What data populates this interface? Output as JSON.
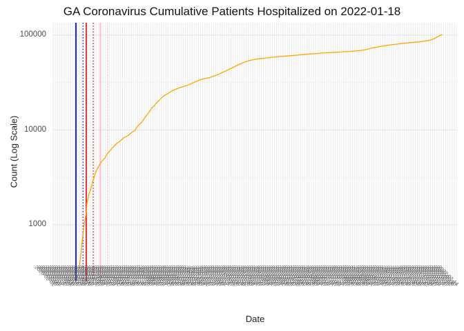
{
  "chart_data": {
    "type": "line",
    "title": "GA Coronavirus Cumulative Patients Hospitalized on 2022-01-18",
    "xlabel": "Date",
    "ylabel": "Count (Log Scale)",
    "y_scale": "log10",
    "ylim": [
      253,
      135000
    ],
    "grid": true,
    "legend": "none",
    "colors": {
      "background": "#FFFFFF",
      "grid_vertical": "#E9E9E9",
      "grid_major_horizontal": "#E3E3E3",
      "grid_minor_horizontal": "#F1F1F1",
      "tick_text": "#4D4D4D",
      "x_tick_text": "#555555"
    },
    "y_ticks": [
      {
        "value": 1000,
        "label": "1000"
      },
      {
        "value": 10000,
        "label": "10000"
      },
      {
        "value": 100000,
        "label": "100000"
      }
    ],
    "y_minor_gridlines": [
      316,
      3162,
      31623
    ],
    "x_axis": {
      "start": "2020-02-01",
      "end": "2022-02-15",
      "tick_step_days": 4,
      "tick_label_format": "YYYY-MM-DD",
      "tick_angle_deg": 45
    },
    "reference_lines": [
      {
        "date": "2020-03-14",
        "color": "#2424D6",
        "style": "solid",
        "width": 2.0
      },
      {
        "date": "2020-03-27",
        "color": "#2424D6",
        "style": "dotted",
        "width": 1.4
      },
      {
        "date": "2020-04-02",
        "color": "#DD2222",
        "style": "solid",
        "width": 1.8
      },
      {
        "date": "2020-04-15",
        "color": "#DD2222",
        "style": "dotted",
        "width": 1.4
      },
      {
        "date": "2020-04-28",
        "color": "#FFB3C1",
        "style": "solid",
        "width": 1.6
      },
      {
        "date": "2020-05-12",
        "color": "#FFCCD5",
        "style": "dotted",
        "width": 1.4
      }
    ],
    "series": [
      {
        "name": "cumulative_patients_hospitalized",
        "color": "#FFA500",
        "points": [
          [
            "2020-03-20",
            350
          ],
          [
            "2020-03-23",
            480
          ],
          [
            "2020-03-25",
            620
          ],
          [
            "2020-03-27",
            790
          ],
          [
            "2020-03-29",
            1000
          ],
          [
            "2020-03-31",
            1160
          ],
          [
            "2020-04-02",
            1330
          ],
          [
            "2020-04-03",
            1650
          ],
          [
            "2020-04-05",
            1850
          ],
          [
            "2020-04-07",
            2100
          ],
          [
            "2020-04-10",
            2350
          ],
          [
            "2020-04-12",
            2600
          ],
          [
            "2020-04-15",
            2950
          ],
          [
            "2020-04-18",
            3400
          ],
          [
            "2020-04-21",
            3750
          ],
          [
            "2020-04-24",
            4050
          ],
          [
            "2020-04-28",
            4450
          ],
          [
            "2020-05-02",
            4750
          ],
          [
            "2020-05-07",
            5100
          ],
          [
            "2020-05-11",
            5650
          ],
          [
            "2020-05-15",
            5950
          ],
          [
            "2020-05-20",
            6450
          ],
          [
            "2020-05-24",
            6800
          ],
          [
            "2020-05-28",
            7200
          ],
          [
            "2020-06-02",
            7500
          ],
          [
            "2020-06-06",
            7850
          ],
          [
            "2020-06-10",
            8250
          ],
          [
            "2020-06-15",
            8550
          ],
          [
            "2020-06-19",
            8800
          ],
          [
            "2020-06-23",
            9250
          ],
          [
            "2020-06-27",
            9600
          ],
          [
            "2020-07-01",
            9900
          ],
          [
            "2020-07-05",
            10800
          ],
          [
            "2020-07-10",
            11600
          ],
          [
            "2020-07-14",
            12200
          ],
          [
            "2020-07-18",
            13200
          ],
          [
            "2020-07-23",
            14400
          ],
          [
            "2020-07-27",
            15400
          ],
          [
            "2020-07-31",
            16800
          ],
          [
            "2020-08-05",
            17900
          ],
          [
            "2020-08-09",
            19100
          ],
          [
            "2020-08-13",
            20100
          ],
          [
            "2020-08-18",
            21500
          ],
          [
            "2020-08-22",
            22600
          ],
          [
            "2020-08-26",
            23400
          ],
          [
            "2020-08-31",
            24300
          ],
          [
            "2020-09-04",
            25100
          ],
          [
            "2020-09-08",
            26000
          ],
          [
            "2020-09-13",
            26700
          ],
          [
            "2020-09-17",
            27300
          ],
          [
            "2020-09-21",
            27900
          ],
          [
            "2020-09-26",
            28400
          ],
          [
            "2020-09-30",
            28900
          ],
          [
            "2020-10-05",
            29500
          ],
          [
            "2020-10-10",
            30300
          ],
          [
            "2020-10-15",
            31200
          ],
          [
            "2020-10-21",
            32300
          ],
          [
            "2020-10-27",
            33400
          ],
          [
            "2020-11-02",
            34300
          ],
          [
            "2020-11-08",
            34900
          ],
          [
            "2020-11-14",
            35500
          ],
          [
            "2020-11-20",
            36300
          ],
          [
            "2020-11-26",
            37500
          ],
          [
            "2020-12-03",
            38900
          ],
          [
            "2020-12-10",
            40500
          ],
          [
            "2020-12-17",
            42300
          ],
          [
            "2020-12-24",
            44300
          ],
          [
            "2020-12-31",
            46400
          ],
          [
            "2021-01-07",
            48600
          ],
          [
            "2021-01-14",
            50600
          ],
          [
            "2021-01-21",
            52400
          ],
          [
            "2021-01-28",
            53900
          ],
          [
            "2021-02-04",
            55000
          ],
          [
            "2021-02-11",
            55900
          ],
          [
            "2021-02-21",
            56800
          ],
          [
            "2021-03-06",
            58000
          ],
          [
            "2021-03-18",
            58900
          ],
          [
            "2021-03-31",
            59800
          ],
          [
            "2021-04-13",
            60600
          ],
          [
            "2021-04-26",
            61400
          ],
          [
            "2021-05-08",
            62300
          ],
          [
            "2021-05-21",
            63300
          ],
          [
            "2021-06-03",
            64100
          ],
          [
            "2021-06-16",
            65000
          ],
          [
            "2021-06-28",
            65500
          ],
          [
            "2021-07-11",
            66200
          ],
          [
            "2021-07-24",
            66900
          ],
          [
            "2021-08-06",
            67600
          ],
          [
            "2021-08-18",
            68500
          ],
          [
            "2021-08-31",
            70300
          ],
          [
            "2021-09-13",
            73500
          ],
          [
            "2021-09-25",
            75600
          ],
          [
            "2021-10-08",
            77800
          ],
          [
            "2021-10-21",
            79700
          ],
          [
            "2021-11-03",
            81100
          ],
          [
            "2021-11-15",
            82600
          ],
          [
            "2021-11-28",
            84000
          ],
          [
            "2021-12-11",
            85500
          ],
          [
            "2021-12-24",
            87500
          ],
          [
            "2021-12-30",
            89500
          ],
          [
            "2022-01-04",
            92000
          ],
          [
            "2022-01-09",
            95500
          ],
          [
            "2022-01-13",
            98000
          ],
          [
            "2022-01-18",
            101000
          ]
        ]
      }
    ]
  }
}
